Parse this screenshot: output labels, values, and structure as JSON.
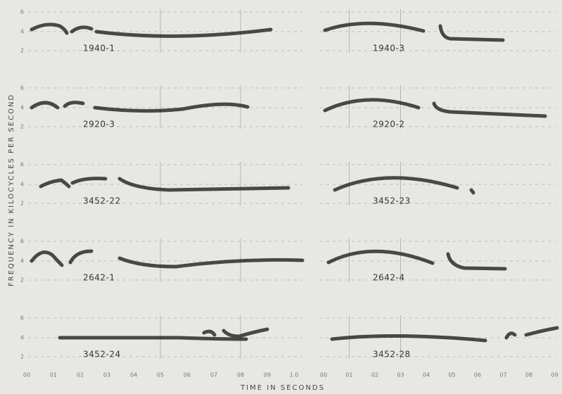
{
  "y_axis_label": "FREQUENCY IN KILOCYCLES PER SECOND",
  "x_axis_label": "TIME IN SECONDS",
  "y_tick_labels": [
    "6",
    "4",
    "2"
  ],
  "left_x_tick_labels": [
    "00",
    "01",
    "02",
    "03",
    "04",
    "05",
    "06",
    "07",
    "08",
    "09",
    "1.0"
  ],
  "right_x_tick_labels": [
    "00",
    "01",
    "02",
    "03",
    "04",
    "05",
    "06",
    "07",
    "08",
    "09"
  ],
  "rows": [
    {
      "left": "1940-1",
      "right": "1940-3"
    },
    {
      "left": "2920-3",
      "right": "2920-2"
    },
    {
      "left": "3452-22",
      "right": "3452-23"
    },
    {
      "left": "2642-1",
      "right": "2642-4"
    },
    {
      "left": "3452-24",
      "right": "3452-28"
    }
  ]
}
